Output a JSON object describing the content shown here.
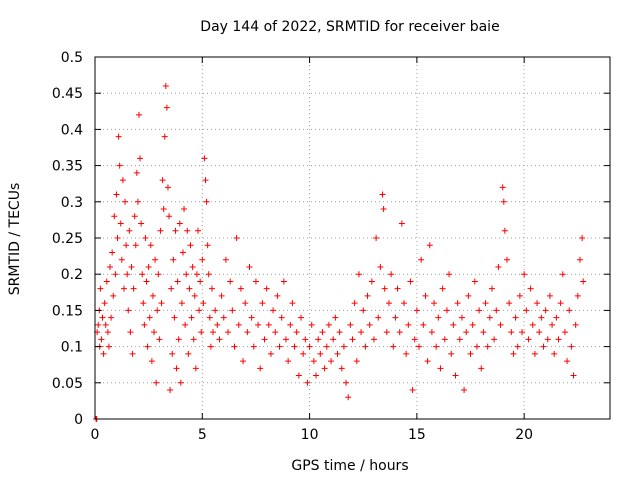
{
  "chart_data": {
    "type": "scatter",
    "title": "Day 144 of 2022, SRMTID for receiver baie",
    "xlabel": "GPS time / hours",
    "ylabel": "SRMTID / TECUs",
    "xlim": [
      0,
      24
    ],
    "ylim": [
      0,
      0.5
    ],
    "xticks": [
      0,
      5,
      10,
      15,
      20
    ],
    "yticks": [
      0,
      0.05,
      0.1,
      0.15,
      0.2,
      0.25,
      0.3,
      0.35,
      0.4,
      0.45,
      0.5
    ],
    "grid": true,
    "marker": "+",
    "color": "#ff0000",
    "series": [
      {
        "name": "SRMTID",
        "points": [
          [
            0.05,
            0.0
          ],
          [
            0.08,
            0.0
          ],
          [
            0.1,
            0.12
          ],
          [
            0.15,
            0.13
          ],
          [
            0.2,
            0.15
          ],
          [
            0.22,
            0.1
          ],
          [
            0.25,
            0.18
          ],
          [
            0.3,
            0.11
          ],
          [
            0.35,
            0.14
          ],
          [
            0.4,
            0.09
          ],
          [
            0.45,
            0.16
          ],
          [
            0.5,
            0.13
          ],
          [
            0.55,
            0.19
          ],
          [
            0.6,
            0.12
          ],
          [
            0.65,
            0.1
          ],
          [
            0.7,
            0.21
          ],
          [
            0.75,
            0.14
          ],
          [
            0.8,
            0.23
          ],
          [
            0.85,
            0.17
          ],
          [
            0.9,
            0.28
          ],
          [
            0.95,
            0.2
          ],
          [
            1.0,
            0.31
          ],
          [
            1.05,
            0.25
          ],
          [
            1.1,
            0.39
          ],
          [
            1.15,
            0.35
          ],
          [
            1.2,
            0.27
          ],
          [
            1.25,
            0.22
          ],
          [
            1.3,
            0.33
          ],
          [
            1.35,
            0.18
          ],
          [
            1.4,
            0.3
          ],
          [
            1.45,
            0.24
          ],
          [
            1.5,
            0.2
          ],
          [
            1.55,
            0.15
          ],
          [
            1.6,
            0.26
          ],
          [
            1.65,
            0.12
          ],
          [
            1.7,
            0.21
          ],
          [
            1.75,
            0.09
          ],
          [
            1.8,
            0.18
          ],
          [
            1.85,
            0.28
          ],
          [
            1.9,
            0.24
          ],
          [
            1.95,
            0.34
          ],
          [
            2.0,
            0.3
          ],
          [
            2.05,
            0.42
          ],
          [
            2.1,
            0.36
          ],
          [
            2.15,
            0.27
          ],
          [
            2.2,
            0.2
          ],
          [
            2.25,
            0.16
          ],
          [
            2.3,
            0.13
          ],
          [
            2.35,
            0.25
          ],
          [
            2.4,
            0.19
          ],
          [
            2.45,
            0.1
          ],
          [
            2.5,
            0.21
          ],
          [
            2.55,
            0.14
          ],
          [
            2.6,
            0.24
          ],
          [
            2.65,
            0.08
          ],
          [
            2.7,
            0.17
          ],
          [
            2.75,
            0.12
          ],
          [
            2.8,
            0.22
          ],
          [
            2.85,
            0.05
          ],
          [
            2.9,
            0.15
          ],
          [
            2.95,
            0.2
          ],
          [
            3.0,
            0.11
          ],
          [
            3.05,
            0.26
          ],
          [
            3.1,
            0.16
          ],
          [
            3.15,
            0.33
          ],
          [
            3.2,
            0.29
          ],
          [
            3.25,
            0.39
          ],
          [
            3.3,
            0.46
          ],
          [
            3.35,
            0.43
          ],
          [
            3.4,
            0.32
          ],
          [
            3.45,
            0.28
          ],
          [
            3.5,
            0.04
          ],
          [
            3.55,
            0.18
          ],
          [
            3.6,
            0.09
          ],
          [
            3.65,
            0.22
          ],
          [
            3.7,
            0.14
          ],
          [
            3.75,
            0.26
          ],
          [
            3.8,
            0.07
          ],
          [
            3.85,
            0.19
          ],
          [
            3.9,
            0.11
          ],
          [
            3.95,
            0.27
          ],
          [
            4.0,
            0.05
          ],
          [
            4.05,
            0.16
          ],
          [
            4.1,
            0.23
          ],
          [
            4.15,
            0.29
          ],
          [
            4.2,
            0.13
          ],
          [
            4.25,
            0.2
          ],
          [
            4.3,
            0.26
          ],
          [
            4.35,
            0.09
          ],
          [
            4.4,
            0.18
          ],
          [
            4.45,
            0.24
          ],
          [
            4.5,
            0.14
          ],
          [
            4.55,
            0.21
          ],
          [
            4.6,
            0.11
          ],
          [
            4.65,
            0.17
          ],
          [
            4.7,
            0.07
          ],
          [
            4.75,
            0.2
          ],
          [
            4.8,
            0.26
          ],
          [
            4.85,
            0.15
          ],
          [
            4.9,
            0.19
          ],
          [
            4.95,
            0.12
          ],
          [
            5.0,
            0.22
          ],
          [
            5.05,
            0.16
          ],
          [
            5.1,
            0.36
          ],
          [
            5.15,
            0.33
          ],
          [
            5.2,
            0.3
          ],
          [
            5.25,
            0.24
          ],
          [
            5.3,
            0.2
          ],
          [
            5.35,
            0.14
          ],
          [
            5.4,
            0.1
          ],
          [
            5.45,
            0.18
          ],
          [
            5.5,
            0.12
          ],
          [
            5.6,
            0.15
          ],
          [
            5.7,
            0.13
          ],
          [
            5.8,
            0.11
          ],
          [
            5.9,
            0.17
          ],
          [
            6.0,
            0.14
          ],
          [
            6.1,
            0.22
          ],
          [
            6.2,
            0.12
          ],
          [
            6.3,
            0.19
          ],
          [
            6.4,
            0.15
          ],
          [
            6.5,
            0.1
          ],
          [
            6.6,
            0.25
          ],
          [
            6.7,
            0.13
          ],
          [
            6.8,
            0.18
          ],
          [
            6.9,
            0.08
          ],
          [
            7.0,
            0.16
          ],
          [
            7.1,
            0.12
          ],
          [
            7.2,
            0.21
          ],
          [
            7.3,
            0.14
          ],
          [
            7.4,
            0.1
          ],
          [
            7.5,
            0.19
          ],
          [
            7.6,
            0.13
          ],
          [
            7.7,
            0.07
          ],
          [
            7.8,
            0.16
          ],
          [
            7.9,
            0.11
          ],
          [
            8.0,
            0.18
          ],
          [
            8.1,
            0.13
          ],
          [
            8.2,
            0.09
          ],
          [
            8.3,
            0.15
          ],
          [
            8.4,
            0.12
          ],
          [
            8.5,
            0.17
          ],
          [
            8.6,
            0.1
          ],
          [
            8.7,
            0.14
          ],
          [
            8.8,
            0.19
          ],
          [
            8.9,
            0.11
          ],
          [
            9.0,
            0.08
          ],
          [
            9.1,
            0.13
          ],
          [
            9.2,
            0.16
          ],
          [
            9.3,
            0.1
          ],
          [
            9.4,
            0.12
          ],
          [
            9.5,
            0.06
          ],
          [
            9.6,
            0.14
          ],
          [
            9.7,
            0.09
          ],
          [
            9.8,
            0.11
          ],
          [
            9.9,
            0.05
          ],
          [
            10.0,
            0.1
          ],
          [
            10.1,
            0.13
          ],
          [
            10.2,
            0.08
          ],
          [
            10.3,
            0.06
          ],
          [
            10.4,
            0.11
          ],
          [
            10.5,
            0.09
          ],
          [
            10.6,
            0.12
          ],
          [
            10.7,
            0.07
          ],
          [
            10.8,
            0.1
          ],
          [
            10.9,
            0.13
          ],
          [
            11.0,
            0.08
          ],
          [
            11.1,
            0.11
          ],
          [
            11.2,
            0.14
          ],
          [
            11.3,
            0.09
          ],
          [
            11.4,
            0.12
          ],
          [
            11.5,
            0.07
          ],
          [
            11.6,
            0.1
          ],
          [
            11.7,
            0.05
          ],
          [
            11.8,
            0.03
          ],
          [
            11.9,
            0.13
          ],
          [
            12.0,
            0.11
          ],
          [
            12.1,
            0.16
          ],
          [
            12.2,
            0.08
          ],
          [
            12.3,
            0.2
          ],
          [
            12.4,
            0.12
          ],
          [
            12.5,
            0.15
          ],
          [
            12.6,
            0.1
          ],
          [
            12.7,
            0.17
          ],
          [
            12.8,
            0.13
          ],
          [
            12.9,
            0.19
          ],
          [
            13.0,
            0.11
          ],
          [
            13.1,
            0.25
          ],
          [
            13.2,
            0.14
          ],
          [
            13.3,
            0.21
          ],
          [
            13.4,
            0.31
          ],
          [
            13.45,
            0.29
          ],
          [
            13.5,
            0.18
          ],
          [
            13.6,
            0.12
          ],
          [
            13.7,
            0.16
          ],
          [
            13.8,
            0.2
          ],
          [
            13.9,
            0.1
          ],
          [
            14.0,
            0.14
          ],
          [
            14.1,
            0.18
          ],
          [
            14.2,
            0.12
          ],
          [
            14.3,
            0.27
          ],
          [
            14.4,
            0.16
          ],
          [
            14.5,
            0.09
          ],
          [
            14.6,
            0.13
          ],
          [
            14.7,
            0.19
          ],
          [
            14.8,
            0.04
          ],
          [
            14.9,
            0.11
          ],
          [
            15.0,
            0.15
          ],
          [
            15.1,
            0.1
          ],
          [
            15.2,
            0.22
          ],
          [
            15.3,
            0.13
          ],
          [
            15.4,
            0.17
          ],
          [
            15.5,
            0.08
          ],
          [
            15.6,
            0.24
          ],
          [
            15.7,
            0.12
          ],
          [
            15.8,
            0.16
          ],
          [
            15.9,
            0.1
          ],
          [
            16.0,
            0.14
          ],
          [
            16.1,
            0.07
          ],
          [
            16.2,
            0.18
          ],
          [
            16.3,
            0.11
          ],
          [
            16.4,
            0.15
          ],
          [
            16.5,
            0.2
          ],
          [
            16.6,
            0.09
          ],
          [
            16.7,
            0.13
          ],
          [
            16.8,
            0.06
          ],
          [
            16.9,
            0.16
          ],
          [
            17.0,
            0.11
          ],
          [
            17.1,
            0.14
          ],
          [
            17.2,
            0.04
          ],
          [
            17.3,
            0.12
          ],
          [
            17.4,
            0.17
          ],
          [
            17.5,
            0.09
          ],
          [
            17.6,
            0.13
          ],
          [
            17.7,
            0.19
          ],
          [
            17.8,
            0.1
          ],
          [
            17.9,
            0.15
          ],
          [
            18.0,
            0.07
          ],
          [
            18.1,
            0.12
          ],
          [
            18.2,
            0.16
          ],
          [
            18.3,
            0.1
          ],
          [
            18.4,
            0.14
          ],
          [
            18.5,
            0.18
          ],
          [
            18.6,
            0.11
          ],
          [
            18.7,
            0.15
          ],
          [
            18.8,
            0.21
          ],
          [
            18.9,
            0.13
          ],
          [
            19.0,
            0.32
          ],
          [
            19.05,
            0.3
          ],
          [
            19.1,
            0.26
          ],
          [
            19.2,
            0.22
          ],
          [
            19.3,
            0.16
          ],
          [
            19.4,
            0.12
          ],
          [
            19.5,
            0.09
          ],
          [
            19.6,
            0.14
          ],
          [
            19.7,
            0.1
          ],
          [
            19.8,
            0.17
          ],
          [
            19.9,
            0.12
          ],
          [
            20.0,
            0.2
          ],
          [
            20.1,
            0.15
          ],
          [
            20.2,
            0.11
          ],
          [
            20.3,
            0.18
          ],
          [
            20.4,
            0.13
          ],
          [
            20.5,
            0.09
          ],
          [
            20.6,
            0.16
          ],
          [
            20.7,
            0.12
          ],
          [
            20.8,
            0.14
          ],
          [
            20.9,
            0.1
          ],
          [
            21.0,
            0.15
          ],
          [
            21.1,
            0.11
          ],
          [
            21.2,
            0.17
          ],
          [
            21.3,
            0.13
          ],
          [
            21.4,
            0.09
          ],
          [
            21.5,
            0.14
          ],
          [
            21.6,
            0.11
          ],
          [
            21.7,
            0.16
          ],
          [
            21.8,
            0.2
          ],
          [
            21.9,
            0.12
          ],
          [
            22.0,
            0.08
          ],
          [
            22.1,
            0.15
          ],
          [
            22.2,
            0.1
          ],
          [
            22.3,
            0.06
          ],
          [
            22.4,
            0.13
          ],
          [
            22.5,
            0.17
          ],
          [
            22.6,
            0.22
          ],
          [
            22.7,
            0.25
          ],
          [
            22.75,
            0.19
          ]
        ]
      }
    ]
  }
}
